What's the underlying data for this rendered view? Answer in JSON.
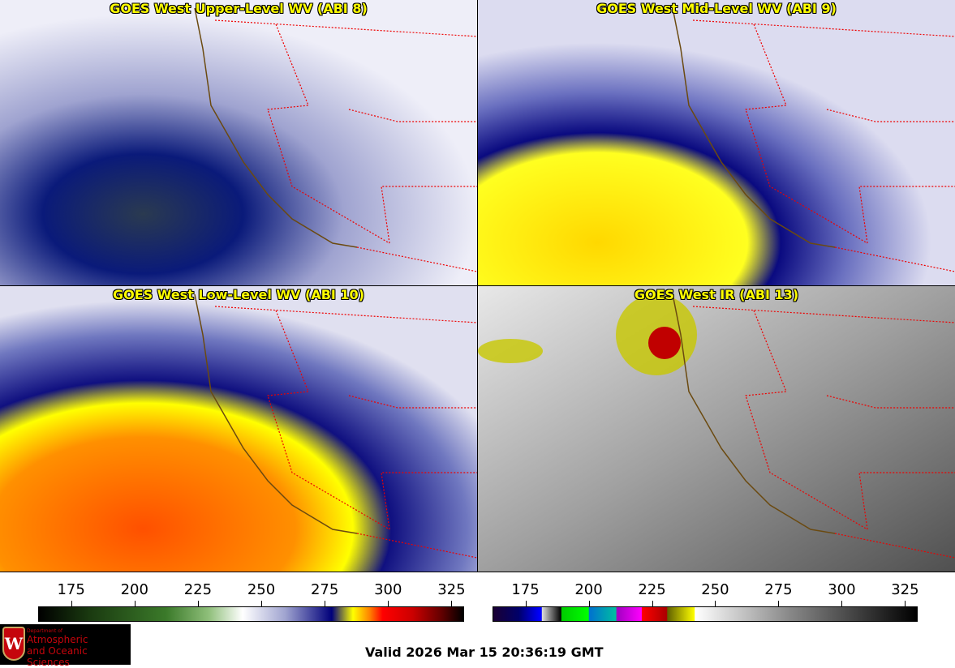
{
  "panels": [
    {
      "title": "GOES West Upper-Level WV (ABI 8)"
    },
    {
      "title": "GOES West Mid-Level WV (ABI 9)"
    },
    {
      "title": "GOES West Low-Level WV (ABI 10)"
    },
    {
      "title": "GOES West IR (ABI 13)"
    }
  ],
  "colorbars": {
    "wv": {
      "ticks": [
        "175",
        "200",
        "225",
        "250",
        "275",
        "300",
        "325"
      ],
      "range": [
        162,
        330
      ]
    },
    "ir": {
      "ticks": [
        "175",
        "200",
        "225",
        "250",
        "275",
        "300",
        "325"
      ],
      "range": [
        162,
        330
      ]
    }
  },
  "logo": {
    "line1": "Department of",
    "line2": "Atmospheric",
    "line3": "and Oceanic Sciences",
    "emblem": "W"
  },
  "valid_time": "Valid 2026 Mar 15 20:36:19 GMT"
}
